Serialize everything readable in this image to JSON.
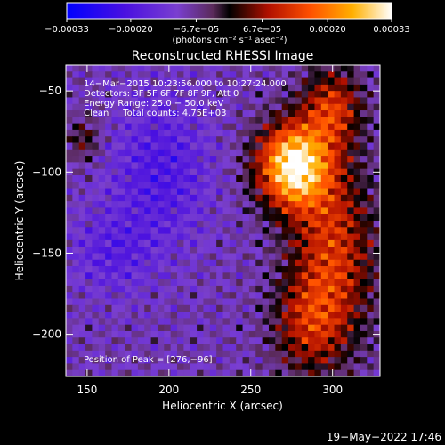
{
  "chart_data": {
    "type": "heatmap",
    "title": "Reconstructed RHESSI Image",
    "xlabel": "Heliocentric X (arcsec)",
    "ylabel": "Heliocentric Y (arcsec)",
    "xlim": [
      137,
      329
    ],
    "ylim": [
      -226,
      -34
    ],
    "x_ticks": [
      150,
      200,
      250,
      300
    ],
    "y_ticks": [
      -50,
      -100,
      -150,
      -200
    ],
    "colorbar": {
      "range": [
        -0.00033,
        0.00033
      ],
      "ticks": [
        {
          "value": -0.00033,
          "label": "−0.00033"
        },
        {
          "value": -0.0002,
          "label": "−0.00020"
        },
        {
          "value": -6.7e-05,
          "label": "−6.7e−05"
        },
        {
          "value": 6.7e-05,
          "label": "6.7e−05"
        },
        {
          "value": 0.0002,
          "label": "0.00020"
        },
        {
          "value": 0.00033,
          "label": "0.00033"
        }
      ],
      "unit_label": "(photons cm⁻² s⁻¹ asec⁻²)"
    },
    "annotations": [
      "14−Mar−2015 10:23:56.000 to 10:27:24.000",
      "Detectors: 3F 5F 6F 7F 8F 9F, Att 0",
      "Energy Range: 25.0 − 50.0 keV",
      "Clean     Total counts: 4.75E+03"
    ],
    "peak_label": "Position of Peak = [276,−96]",
    "peak": {
      "x": 276,
      "y": -96
    },
    "grid": false
  },
  "footer": {
    "date": "19−May−2022 17:46"
  }
}
